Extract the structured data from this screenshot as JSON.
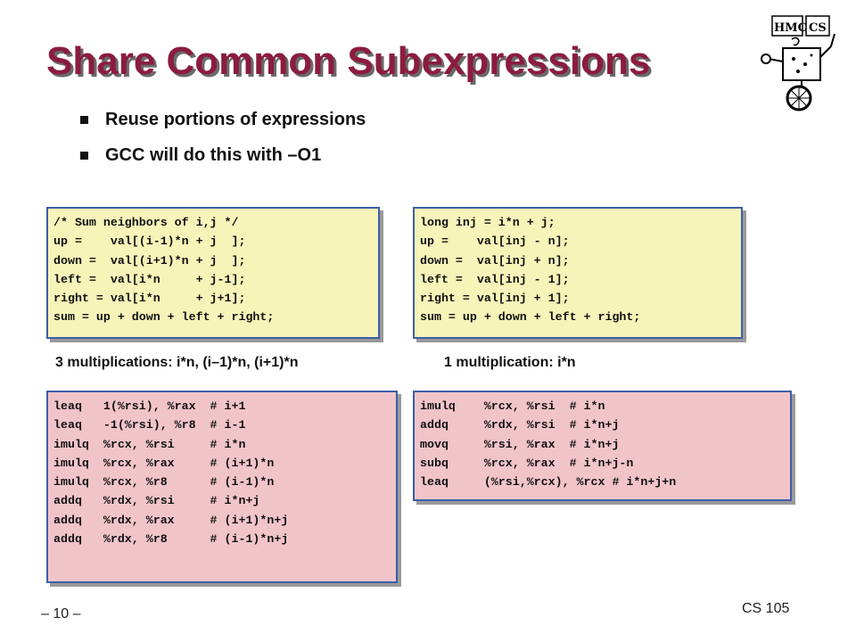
{
  "slide": {
    "title": "Share Common Subexpressions",
    "bullets": [
      "Reuse portions of expressions",
      "GCC will do this with –O1"
    ],
    "logo": {
      "icon": "hmc-cs-robot-logo",
      "text_left": "HMC",
      "text_right": "CS"
    }
  },
  "code": {
    "c_before": "/* Sum neighbors of i,j */\nup =    val[(i-1)*n + j  ];\ndown =  val[(i+1)*n + j  ];\nleft =  val[i*n     + j-1];\nright = val[i*n     + j+1];\nsum = up + down + left + right;",
    "c_after": "long inj = i*n + j;\nup =    val[inj - n];\ndown =  val[inj + n];\nleft =  val[inj - 1];\nright = val[inj + 1];\nsum = up + down + left + right;",
    "asm_before": "leaq   1(%rsi), %rax  # i+1\nleaq   -1(%rsi), %r8  # i-1\nimulq  %rcx, %rsi     # i*n\nimulq  %rcx, %rax     # (i+1)*n\nimulq  %rcx, %r8      # (i-1)*n\naddq   %rdx, %rsi     # i*n+j\naddq   %rdx, %rax     # (i+1)*n+j\naddq   %rdx, %r8      # (i-1)*n+j",
    "asm_after": "imulq    %rcx, %rsi  # i*n\naddq     %rdx, %rsi  # i*n+j\nmovq     %rsi, %rax  # i*n+j\nsubq     %rcx, %rax  # i*n+j-n\nleaq     (%rsi,%rcx), %rcx # i*n+j+n"
  },
  "captions": {
    "left": "3 multiplications: i*n, (i–1)*n, (i+1)*n",
    "right": "1 multiplication: i*n"
  },
  "footer": {
    "page": "– 10 –",
    "course": "CS 105"
  },
  "colors": {
    "title": "#8b1c3f",
    "code_yellow": "#f7f4b9",
    "code_pink": "#f1c4ca",
    "box_border": "#3d5ea8"
  }
}
